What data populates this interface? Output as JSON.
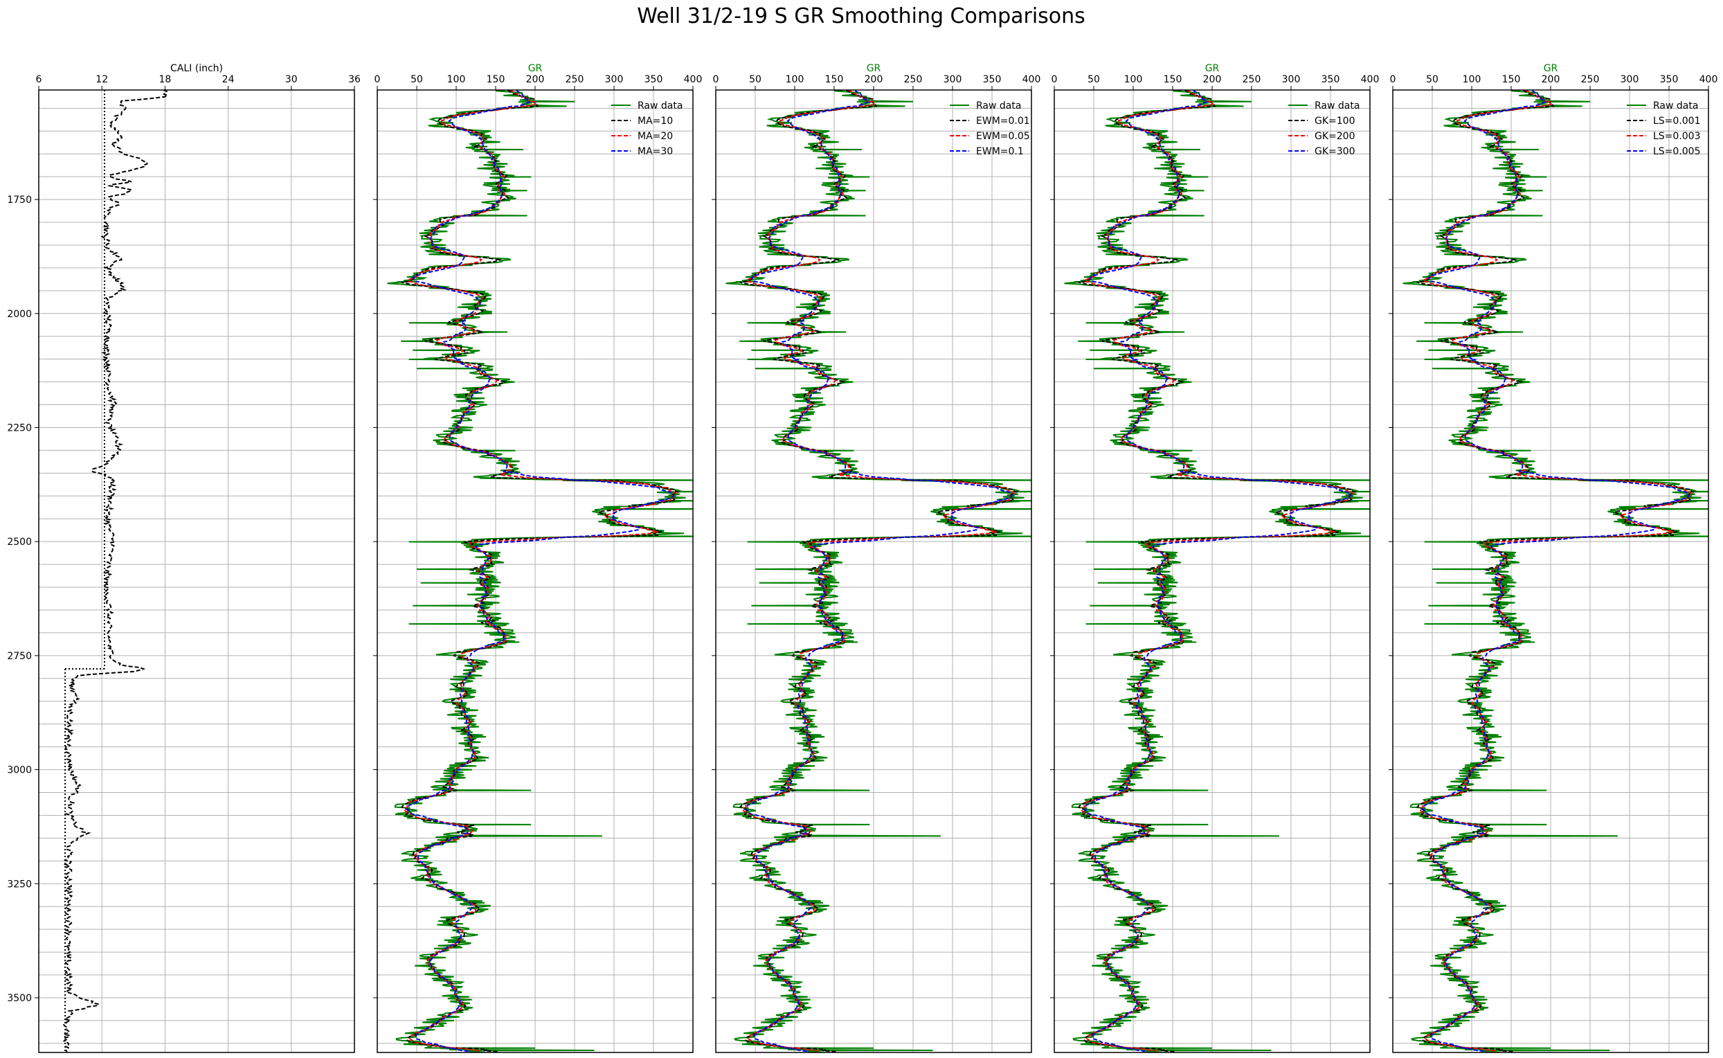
{
  "title": "Well 31/2-19 S GR Smoothing Comparisons",
  "depth_axis": {
    "range": [
      1510,
      3620
    ],
    "ticks": [
      1750,
      2000,
      2250,
      2500,
      2750,
      3000,
      3250,
      3500
    ],
    "tick_labels": [
      "1750",
      "2000",
      "2250",
      "2500",
      "2750",
      "3000",
      "3250",
      "3500"
    ],
    "inverted": true
  },
  "chart_data": [
    {
      "type": "line",
      "xlabel": "CALI (inch)",
      "xlim": [
        6,
        36
      ],
      "xticks": [
        6,
        12,
        18,
        24,
        30,
        36
      ],
      "xtick_labels": [
        "6",
        "12",
        "18",
        "24",
        "30",
        "36"
      ],
      "grid": true,
      "bit_size": {
        "style": "dotted",
        "color": "#000000",
        "segments": [
          {
            "value": 12.25,
            "depth_top": 1510,
            "depth_bottom": 2779
          },
          {
            "value": 8.5,
            "depth_top": 2779,
            "depth_bottom": 3620
          }
        ]
      },
      "series": [
        {
          "style": "dashed",
          "color": "#000000",
          "points": [
            [
              1510,
              17.8
            ],
            [
              1525,
              18.2
            ],
            [
              1535,
              13.5
            ],
            [
              1550,
              14.5
            ],
            [
              1570,
              13.2
            ],
            [
              1590,
              12.8
            ],
            [
              1610,
              14.0
            ],
            [
              1630,
              13.0
            ],
            [
              1650,
              14.2
            ],
            [
              1670,
              16.5
            ],
            [
              1685,
              15.0
            ],
            [
              1700,
              12.3
            ],
            [
              1710,
              14.8
            ],
            [
              1720,
              12.5
            ],
            [
              1730,
              15.2
            ],
            [
              1745,
              12.8
            ],
            [
              1760,
              13.5
            ],
            [
              1780,
              12.4
            ],
            [
              1800,
              12.6
            ],
            [
              1830,
              12.3
            ],
            [
              1860,
              12.7
            ],
            [
              1880,
              13.9
            ],
            [
              1900,
              12.5
            ],
            [
              1920,
              13.2
            ],
            [
              1945,
              14.1
            ],
            [
              1965,
              12.6
            ],
            [
              2000,
              12.5
            ],
            [
              2040,
              12.7
            ],
            [
              2080,
              12.4
            ],
            [
              2120,
              12.6
            ],
            [
              2160,
              12.7
            ],
            [
              2200,
              13.1
            ],
            [
              2240,
              12.6
            ],
            [
              2270,
              13.2
            ],
            [
              2300,
              13.8
            ],
            [
              2330,
              12.4
            ],
            [
              2345,
              11.0
            ],
            [
              2360,
              13.0
            ],
            [
              2400,
              12.9
            ],
            [
              2440,
              12.5
            ],
            [
              2470,
              12.7
            ],
            [
              2500,
              13.1
            ],
            [
              2550,
              12.6
            ],
            [
              2600,
              12.4
            ],
            [
              2650,
              12.7
            ],
            [
              2700,
              12.6
            ],
            [
              2740,
              12.8
            ],
            [
              2760,
              13.2
            ],
            [
              2770,
              13.8
            ],
            [
              2778,
              16.0
            ],
            [
              2785,
              15.2
            ],
            [
              2792,
              10.0
            ],
            [
              2800,
              9.3
            ],
            [
              2820,
              9.1
            ],
            [
              2840,
              9.8
            ],
            [
              2860,
              9.0
            ],
            [
              2900,
              8.9
            ],
            [
              2950,
              8.8
            ],
            [
              3000,
              9.0
            ],
            [
              3040,
              9.8
            ],
            [
              3060,
              9.1
            ],
            [
              3100,
              8.9
            ],
            [
              3120,
              9.4
            ],
            [
              3140,
              10.5
            ],
            [
              3160,
              9.0
            ],
            [
              3200,
              8.8
            ],
            [
              3250,
              8.9
            ],
            [
              3300,
              8.8
            ],
            [
              3350,
              8.9
            ],
            [
              3400,
              8.7
            ],
            [
              3450,
              8.8
            ],
            [
              3490,
              8.9
            ],
            [
              3515,
              11.8
            ],
            [
              3530,
              9.0
            ],
            [
              3560,
              8.6
            ],
            [
              3600,
              8.7
            ],
            [
              3620,
              8.9
            ]
          ]
        }
      ]
    },
    {
      "type": "line",
      "xlabel": "GR",
      "xlim": [
        0,
        400
      ],
      "xticks": [
        0,
        50,
        100,
        150,
        200,
        250,
        300,
        350,
        400
      ],
      "xtick_labels": [
        "0",
        "50",
        "100",
        "150",
        "200",
        "250",
        "300",
        "350",
        "400"
      ],
      "grid": true,
      "legend_position": "top-right",
      "series": [
        {
          "name": "Raw data",
          "style": "solid",
          "color": "#008000"
        },
        {
          "name": "MA=10",
          "style": "dashed",
          "color": "#000000"
        },
        {
          "name": "MA=20",
          "style": "dashed",
          "color": "#ff0000"
        },
        {
          "name": "MA=30",
          "style": "dashed",
          "color": "#0000ff"
        }
      ]
    },
    {
      "type": "line",
      "xlabel": "GR",
      "xlim": [
        0,
        400
      ],
      "xticks": [
        0,
        50,
        100,
        150,
        200,
        250,
        300,
        350,
        400
      ],
      "xtick_labels": [
        "0",
        "50",
        "100",
        "150",
        "200",
        "250",
        "300",
        "350",
        "400"
      ],
      "grid": true,
      "legend_position": "top-right",
      "series": [
        {
          "name": "Raw data",
          "style": "solid",
          "color": "#008000"
        },
        {
          "name": "EWM=0.01",
          "style": "dashed",
          "color": "#000000"
        },
        {
          "name": "EWM=0.05",
          "style": "dashed",
          "color": "#ff0000"
        },
        {
          "name": "EWM=0.1",
          "style": "dashed",
          "color": "#0000ff"
        }
      ]
    },
    {
      "type": "line",
      "xlabel": "GR",
      "xlim": [
        0,
        400
      ],
      "xticks": [
        0,
        50,
        100,
        150,
        200,
        250,
        300,
        350,
        400
      ],
      "xtick_labels": [
        "0",
        "50",
        "100",
        "150",
        "200",
        "250",
        "300",
        "350",
        "400"
      ],
      "grid": true,
      "legend_position": "top-right",
      "series": [
        {
          "name": "Raw data",
          "style": "solid",
          "color": "#008000"
        },
        {
          "name": "GK=100",
          "style": "dashed",
          "color": "#000000"
        },
        {
          "name": "GK=200",
          "style": "dashed",
          "color": "#ff0000"
        },
        {
          "name": "GK=300",
          "style": "dashed",
          "color": "#0000ff"
        }
      ]
    },
    {
      "type": "line",
      "xlabel": "GR",
      "xlim": [
        0,
        400
      ],
      "xticks": [
        0,
        50,
        100,
        150,
        200,
        250,
        300,
        350,
        400
      ],
      "xtick_labels": [
        "0",
        "50",
        "100",
        "150",
        "200",
        "250",
        "300",
        "350",
        "400"
      ],
      "grid": true,
      "legend_position": "top-right",
      "series": [
        {
          "name": "Raw data",
          "style": "solid",
          "color": "#008000"
        },
        {
          "name": "LS=0.001",
          "style": "dashed",
          "color": "#000000"
        },
        {
          "name": "LS=0.003",
          "style": "dashed",
          "color": "#ff0000"
        },
        {
          "name": "LS=0.005",
          "style": "dashed",
          "color": "#0000ff"
        }
      ]
    }
  ],
  "gr_profile": [
    [
      1510,
      155
    ],
    [
      1530,
      185
    ],
    [
      1545,
      200
    ],
    [
      1560,
      105
    ],
    [
      1575,
      80
    ],
    [
      1590,
      75
    ],
    [
      1600,
      130
    ],
    [
      1620,
      140
    ],
    [
      1640,
      130
    ],
    [
      1660,
      150
    ],
    [
      1680,
      145
    ],
    [
      1700,
      155
    ],
    [
      1720,
      150
    ],
    [
      1740,
      160
    ],
    [
      1760,
      150
    ],
    [
      1780,
      130
    ],
    [
      1790,
      85
    ],
    [
      1810,
      75
    ],
    [
      1830,
      72
    ],
    [
      1850,
      70
    ],
    [
      1870,
      75
    ],
    [
      1880,
      165
    ],
    [
      1890,
      140
    ],
    [
      1900,
      65
    ],
    [
      1915,
      50
    ],
    [
      1935,
      30
    ],
    [
      1950,
      120
    ],
    [
      1970,
      130
    ],
    [
      1985,
      120
    ],
    [
      2000,
      130
    ],
    [
      2020,
      90
    ],
    [
      2040,
      140
    ],
    [
      2060,
      60
    ],
    [
      2080,
      130
    ],
    [
      2100,
      70
    ],
    [
      2115,
      140
    ],
    [
      2130,
      135
    ],
    [
      2150,
      155
    ],
    [
      2165,
      120
    ],
    [
      2180,
      115
    ],
    [
      2200,
      120
    ],
    [
      2220,
      110
    ],
    [
      2240,
      115
    ],
    [
      2260,
      100
    ],
    [
      2280,
      80
    ],
    [
      2300,
      130
    ],
    [
      2315,
      150
    ],
    [
      2330,
      170
    ],
    [
      2345,
      175
    ],
    [
      2360,
      130
    ],
    [
      2370,
      340
    ],
    [
      2385,
      360
    ],
    [
      2400,
      380
    ],
    [
      2415,
      370
    ],
    [
      2425,
      290
    ],
    [
      2440,
      280
    ],
    [
      2460,
      300
    ],
    [
      2475,
      350
    ],
    [
      2485,
      380
    ],
    [
      2495,
      120
    ],
    [
      2510,
      130
    ],
    [
      2530,
      140
    ],
    [
      2550,
      145
    ],
    [
      2570,
      130
    ],
    [
      2590,
      145
    ],
    [
      2610,
      130
    ],
    [
      2630,
      140
    ],
    [
      2650,
      135
    ],
    [
      2670,
      145
    ],
    [
      2690,
      150
    ],
    [
      2710,
      160
    ],
    [
      2730,
      150
    ],
    [
      2745,
      80
    ],
    [
      2760,
      120
    ],
    [
      2775,
      130
    ],
    [
      2790,
      120
    ],
    [
      2810,
      100
    ],
    [
      2830,
      110
    ],
    [
      2850,
      100
    ],
    [
      2870,
      110
    ],
    [
      2890,
      105
    ],
    [
      2910,
      115
    ],
    [
      2930,
      125
    ],
    [
      2950,
      120
    ],
    [
      2970,
      130
    ],
    [
      2990,
      110
    ],
    [
      3010,
      100
    ],
    [
      3030,
      90
    ],
    [
      3050,
      80
    ],
    [
      3065,
      60
    ],
    [
      3080,
      40
    ],
    [
      3095,
      35
    ],
    [
      3110,
      60
    ],
    [
      3125,
      120
    ],
    [
      3140,
      100
    ],
    [
      3160,
      80
    ],
    [
      3180,
      50
    ],
    [
      3200,
      45
    ],
    [
      3220,
      70
    ],
    [
      3240,
      60
    ],
    [
      3260,
      90
    ],
    [
      3280,
      110
    ],
    [
      3300,
      130
    ],
    [
      3320,
      100
    ],
    [
      3340,
      90
    ],
    [
      3360,
      110
    ],
    [
      3380,
      100
    ],
    [
      3400,
      80
    ],
    [
      3420,
      60
    ],
    [
      3440,
      70
    ],
    [
      3460,
      90
    ],
    [
      3480,
      95
    ],
    [
      3500,
      100
    ],
    [
      3520,
      110
    ],
    [
      3540,
      90
    ],
    [
      3560,
      70
    ],
    [
      3575,
      50
    ],
    [
      3590,
      40
    ],
    [
      3600,
      45
    ],
    [
      3610,
      80
    ],
    [
      3620,
      150
    ]
  ],
  "gr_spikes": [
    [
      1535,
      250
    ],
    [
      1545,
      240
    ],
    [
      1640,
      185
    ],
    [
      1700,
      195
    ],
    [
      1730,
      190
    ],
    [
      1785,
      190
    ],
    [
      1930,
      25
    ],
    [
      2020,
      40
    ],
    [
      2040,
      165
    ],
    [
      2060,
      30
    ],
    [
      2080,
      45
    ],
    [
      2100,
      40
    ],
    [
      2120,
      50
    ],
    [
      2300,
      175
    ],
    [
      2360,
      170
    ],
    [
      2365,
      450
    ],
    [
      2390,
      420
    ],
    [
      2410,
      410
    ],
    [
      2428,
      460
    ],
    [
      2488,
      460
    ],
    [
      2500,
      40
    ],
    [
      2560,
      50
    ],
    [
      2590,
      55
    ],
    [
      2640,
      45
    ],
    [
      2680,
      40
    ],
    [
      2720,
      180
    ],
    [
      3045,
      195
    ],
    [
      3120,
      195
    ],
    [
      3145,
      285
    ],
    [
      3610,
      200
    ],
    [
      3615,
      275
    ]
  ],
  "smoothing_offsets": [
    {
      "amp": 0.6,
      "shift": 5
    },
    {
      "amp": 0.8,
      "shift": 12
    },
    {
      "amp": 0.9,
      "shift": 20
    }
  ]
}
